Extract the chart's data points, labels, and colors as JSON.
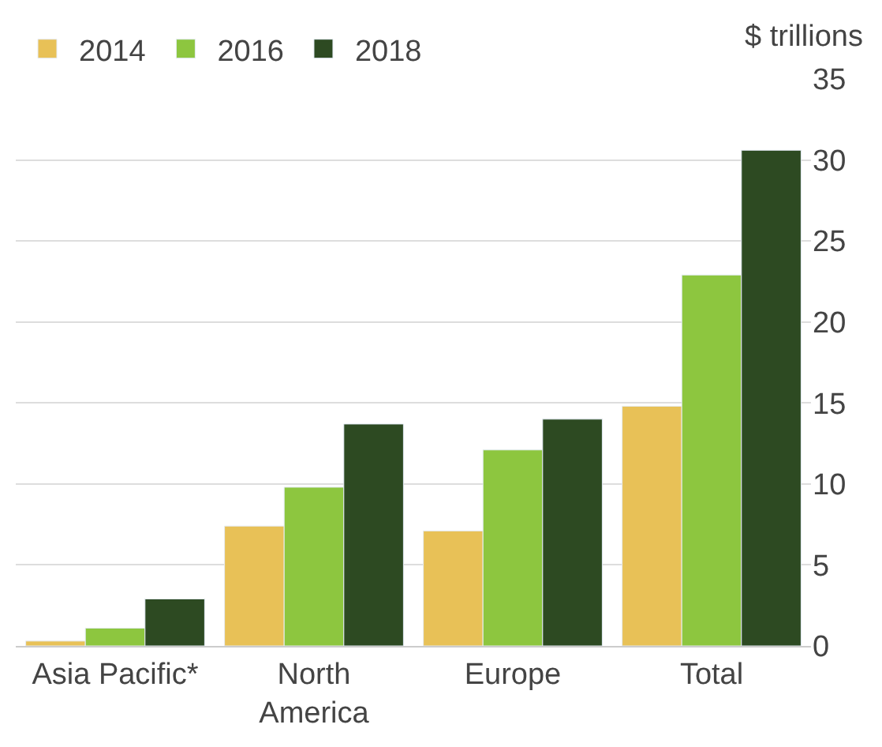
{
  "chart_data": {
    "type": "bar",
    "ylabel": "$ trillions",
    "categories": [
      "Asia Pacific*",
      "North\nAmerica",
      "Europe",
      "Total"
    ],
    "series": [
      {
        "name": "2014",
        "color": "#e8c157",
        "values": [
          0.3,
          7.4,
          7.1,
          14.8
        ]
      },
      {
        "name": "2016",
        "color": "#8dc63f",
        "values": [
          1.1,
          9.8,
          12.1,
          22.9
        ]
      },
      {
        "name": "2018",
        "color": "#2d4a22",
        "values": [
          2.9,
          13.7,
          14.0,
          30.6
        ]
      }
    ],
    "ylim": [
      0,
      35
    ],
    "yticks": [
      0,
      5,
      10,
      15,
      20,
      25,
      30,
      35
    ],
    "grid": "y",
    "legend": "top left"
  }
}
